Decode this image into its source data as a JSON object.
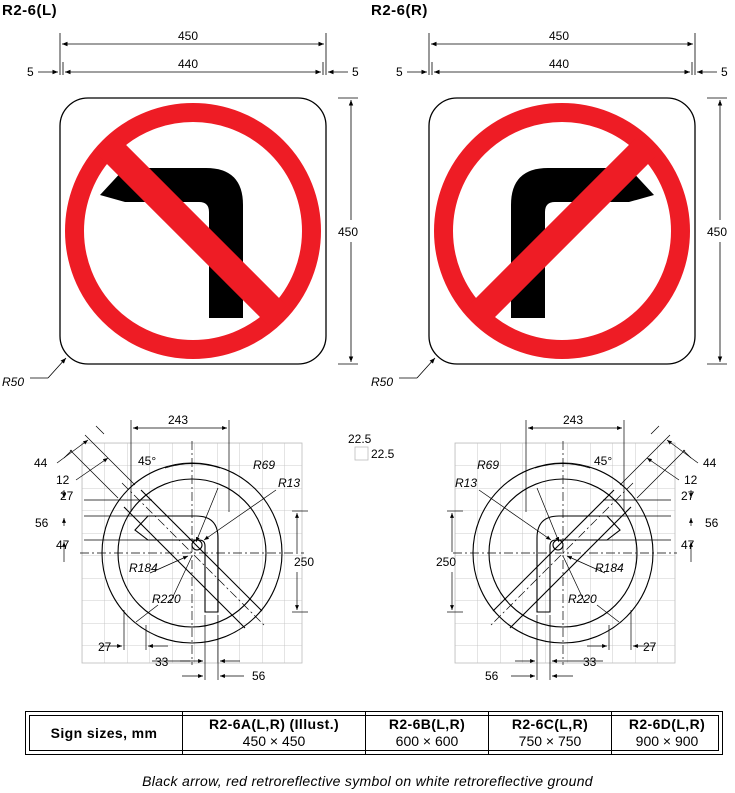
{
  "signs": {
    "left": {
      "code": "R2-6(L)"
    },
    "right": {
      "code": "R2-6(R)"
    }
  },
  "dimensions": {
    "overall_width": "450",
    "inner_width": "440",
    "margin": "5",
    "height": "450",
    "corner_radius": "R50"
  },
  "detail": {
    "arrow_width": "243",
    "angle": "45°",
    "band_offset": "44",
    "band_gap": "12",
    "dim_27": "27",
    "dim_56": "56",
    "dim_47": "47",
    "r69": "R69",
    "r13": "R13",
    "r184": "R184",
    "r220": "R220",
    "height_250": "250",
    "bottom_27": "27",
    "bottom_33": "33",
    "bottom_56": "56",
    "grid_size_a": "22.5",
    "grid_size_b": "22.5"
  },
  "sizes_table": {
    "header": "Sign sizes, mm",
    "columns": [
      {
        "label": "R2-6A(L,R) (Illust.)",
        "size": "450 × 450"
      },
      {
        "label": "R2-6B(L,R)",
        "size": "600 × 600"
      },
      {
        "label": "R2-6C(L,R)",
        "size": "750 × 750"
      },
      {
        "label": "R2-6D(L,R)",
        "size": "900 × 900"
      }
    ]
  },
  "caption": "Black arrow, red retroreflective symbol on white retroreflective ground",
  "colors": {
    "red": "#ee1c25",
    "black": "#000000",
    "white": "#ffffff"
  }
}
